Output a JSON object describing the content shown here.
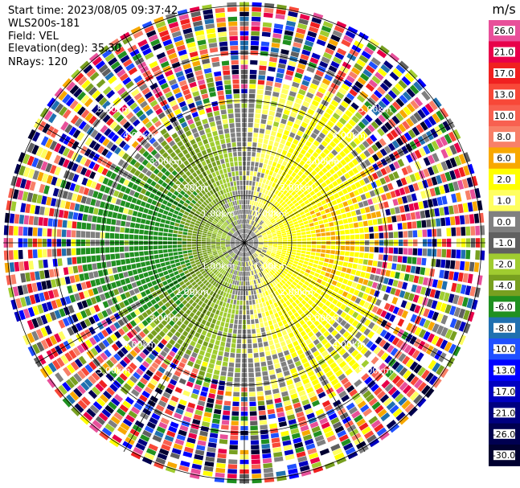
{
  "header": {
    "start_time": "Start time: 2023/08/05 09:37:42",
    "instrument": "WLS200s-181",
    "field": "Field: VEL",
    "elevation": "Elevation(deg): 35.30",
    "nrays": "NRays: 120"
  },
  "ppi": {
    "range_rings": [
      {
        "km": 1,
        "label": "1.00km"
      },
      {
        "km": 2,
        "label": "2.00km"
      },
      {
        "km": 3,
        "label": "3.00km"
      },
      {
        "km": 4,
        "label": "4.00km"
      },
      {
        "km": 5,
        "label": "5.00km"
      }
    ],
    "rays": 120,
    "radial_line_step_deg": 30
  },
  "colorbar": {
    "unit": "m/s",
    "levels": [
      {
        "label": "26.0",
        "color": "#e8509a"
      },
      {
        "label": "21.0",
        "color": "#e8004a"
      },
      {
        "label": "17.0",
        "color": "#f02020"
      },
      {
        "label": "13.0",
        "color": "#f84838"
      },
      {
        "label": "10.0",
        "color": "#f86050"
      },
      {
        "label": "8.0",
        "color": "#f88068"
      },
      {
        "label": "6.0",
        "color": "#f8a800"
      },
      {
        "label": "2.0",
        "color": "#ffff00"
      },
      {
        "label": "1.0",
        "color": "#ffff60"
      },
      {
        "label": "0.0",
        "color": "#808080"
      },
      {
        "label": "-1.0",
        "color": "#606060"
      },
      {
        "label": "-2.0",
        "color": "#a0cc30"
      },
      {
        "label": "-4.0",
        "color": "#78a020"
      },
      {
        "label": "-6.0",
        "color": "#209020"
      },
      {
        "label": "-8.0",
        "color": "#2070b0"
      },
      {
        "label": "-10.0",
        "color": "#2050ff"
      },
      {
        "label": "-13.0",
        "color": "#0000ff"
      },
      {
        "label": "-17.0",
        "color": "#0000c0"
      },
      {
        "label": "-21.0",
        "color": "#000080"
      },
      {
        "label": "-26.0",
        "color": "#000050"
      },
      {
        "label": "-30.0",
        "color": "#000030"
      }
    ]
  }
}
